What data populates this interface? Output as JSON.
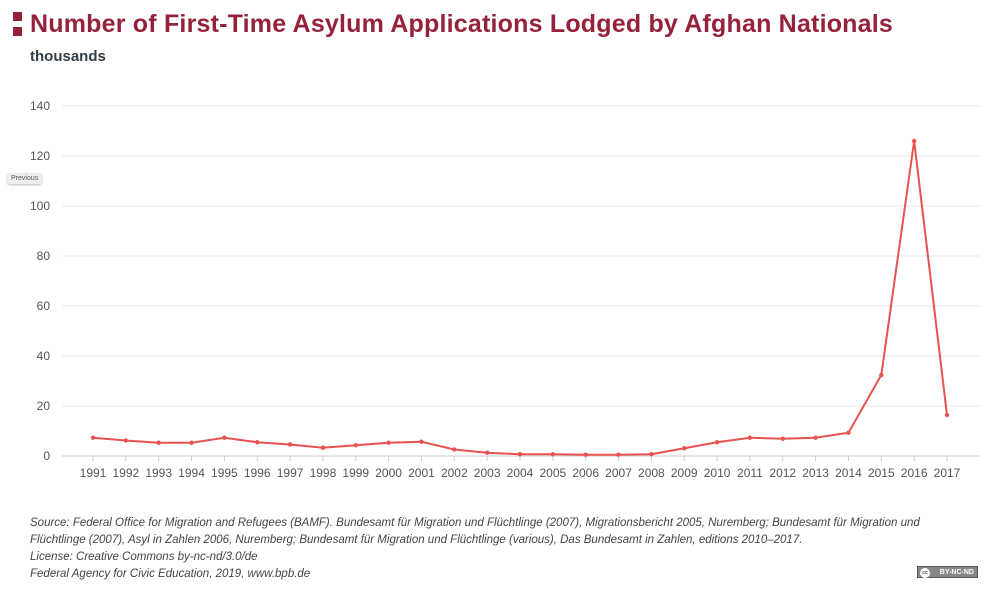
{
  "chart_data": {
    "type": "line",
    "title": "Number of First-Time Asylum Applications Lodged by Afghan Nationals",
    "ylabel": "thousands",
    "xlabel": "",
    "ylim": [
      0,
      140
    ],
    "yticks": [
      0,
      20,
      40,
      60,
      80,
      100,
      120,
      140
    ],
    "grid": true,
    "color": "#e8524f",
    "categories": [
      "1991",
      "1992",
      "1993",
      "1994",
      "1995",
      "1996",
      "1997",
      "1998",
      "1999",
      "2000",
      "2001",
      "2002",
      "2003",
      "2004",
      "2005",
      "2006",
      "2007",
      "2008",
      "2009",
      "2010",
      "2011",
      "2012",
      "2013",
      "2014",
      "2015",
      "2016",
      "2017"
    ],
    "series": [
      {
        "name": "First-time asylum applications",
        "values": [
          7.3,
          6.2,
          5.3,
          5.3,
          7.3,
          5.5,
          4.6,
          3.3,
          4.3,
          5.3,
          5.7,
          2.6,
          1.3,
          0.7,
          0.7,
          0.5,
          0.5,
          0.7,
          3.1,
          5.5,
          7.3,
          6.9,
          7.3,
          9.3,
          32.4,
          126.0,
          16.4
        ]
      }
    ]
  },
  "ui": {
    "previous_label": "Previous",
    "license_badge": "BY-NC-ND",
    "cc_label": "cc"
  },
  "source": {
    "line1": "Source: Federal Office for Migration and Refugees (BAMF). Bundesamt für Migration und Flüchtlinge (2007), Migrationsbericht 2005, Nuremberg; Bundesamt für Migration und Flüchtlinge (2007), Asyl in Zahlen 2006, Nuremberg; Bundesamt für Migration und Flüchtlinge (various), Das Bundesamt in Zahlen, editions 2010–2017.",
    "license": "License: Creative Commons by-nc-nd/3.0/de",
    "publisher": "Federal Agency for Civic Education, 2019, www.bpb.de"
  }
}
